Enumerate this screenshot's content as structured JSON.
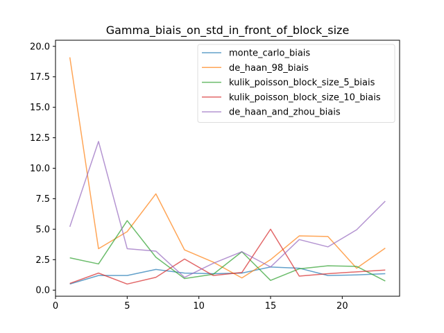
{
  "chart_data": {
    "type": "line",
    "title": "Gamma_biais_on_std_in_front_of_block_size",
    "xlabel": "",
    "ylabel": "",
    "xlim": [
      0,
      24
    ],
    "ylim": [
      -0.5,
      20.5
    ],
    "xticks": [
      0,
      5,
      10,
      15,
      20
    ],
    "yticks": [
      0.0,
      2.5,
      5.0,
      7.5,
      10.0,
      12.5,
      15.0,
      17.5,
      20.0
    ],
    "grid": false,
    "legend_position": "top-right",
    "x": [
      1,
      3,
      5,
      7,
      9,
      11,
      13,
      15,
      17,
      19,
      21,
      23
    ],
    "series": [
      {
        "name": "monte_carlo_biais",
        "color": "#1f77b4",
        "values": [
          0.5,
          1.2,
          1.2,
          1.7,
          1.4,
          1.35,
          1.4,
          1.9,
          1.8,
          1.2,
          1.25,
          1.35
        ]
      },
      {
        "name": "de_haan_98_biais",
        "color": "#ff7f0e",
        "values": [
          19.1,
          3.4,
          4.8,
          7.9,
          3.3,
          2.3,
          1.0,
          2.5,
          4.45,
          4.4,
          1.8,
          3.45
        ]
      },
      {
        "name": "kulik_poisson_block_size_5_biais",
        "color": "#2ca02c",
        "values": [
          2.65,
          2.15,
          5.7,
          2.7,
          0.95,
          1.3,
          3.15,
          0.8,
          1.75,
          2.0,
          1.95,
          0.75
        ]
      },
      {
        "name": "kulik_poisson_block_size_10_biais",
        "color": "#d62728",
        "values": [
          0.55,
          1.4,
          0.5,
          1.05,
          2.55,
          1.2,
          1.45,
          5.0,
          1.15,
          1.35,
          1.5,
          1.65
        ]
      },
      {
        "name": "de_haan_and_zhou_biais",
        "color": "#9467bd",
        "values": [
          5.2,
          12.2,
          3.4,
          3.2,
          1.05,
          2.2,
          3.15,
          1.9,
          4.15,
          3.55,
          4.95,
          7.3
        ]
      }
    ]
  }
}
